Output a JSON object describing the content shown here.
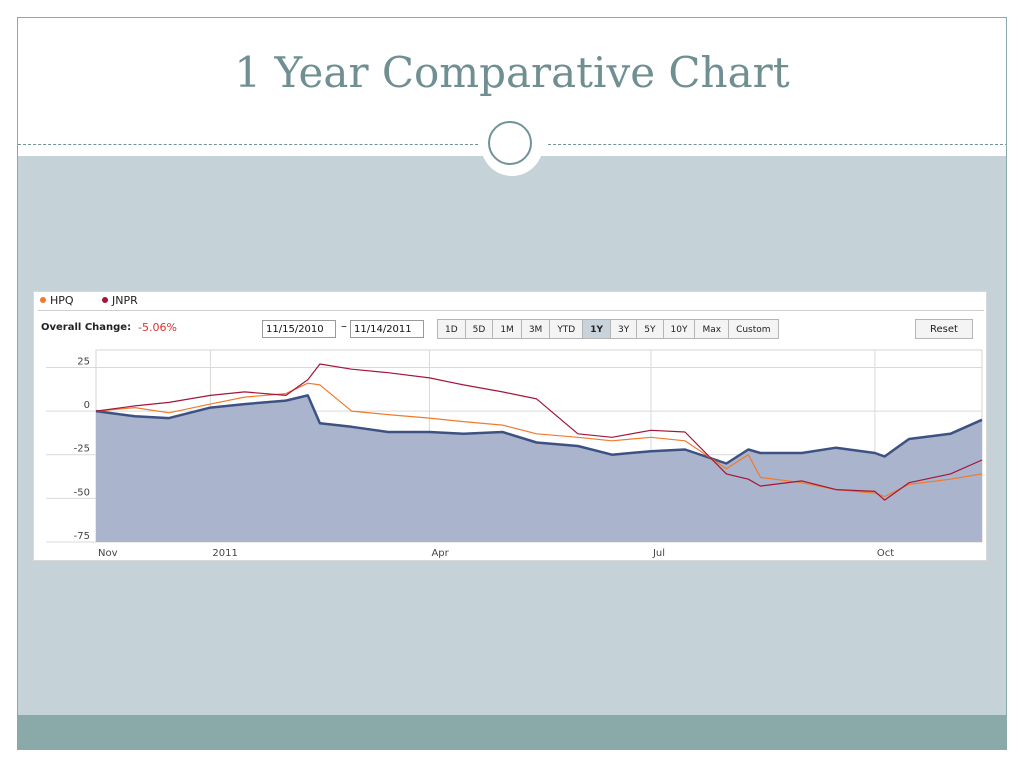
{
  "slide": {
    "title": "1 Year Comparative Chart"
  },
  "widget": {
    "legend": [
      {
        "label": "HPQ",
        "color": "#f07a2d"
      },
      {
        "label": "JNPR",
        "color": "#a3163a"
      }
    ],
    "overall_change_label": "Overall Change:",
    "overall_change_value": "-5.06%",
    "date_from": "11/15/2010",
    "date_sep": "–",
    "date_to": "11/14/2011",
    "range_buttons": [
      "1D",
      "5D",
      "1M",
      "3M",
      "YTD",
      "1Y",
      "3Y",
      "5Y",
      "10Y",
      "Max",
      "Custom"
    ],
    "active_range": "1Y",
    "reset_label": "Reset"
  },
  "chart_data": {
    "type": "line",
    "title": "",
    "ylim": [
      -75,
      35
    ],
    "y_ticks": [
      25,
      0,
      -25,
      -50,
      -75
    ],
    "x_ticks": [
      "Nov",
      "2011",
      "Apr",
      "Jul",
      "Oct"
    ],
    "grid": true,
    "legend": "top-left",
    "x": [
      "2010-11-15",
      "2010-12-01",
      "2010-12-15",
      "2011-01-01",
      "2011-01-15",
      "2011-02-01",
      "2011-02-10",
      "2011-02-15",
      "2011-02-28",
      "2011-03-15",
      "2011-04-01",
      "2011-04-15",
      "2011-05-01",
      "2011-05-15",
      "2011-06-01",
      "2011-06-15",
      "2011-07-01",
      "2011-07-15",
      "2011-08-01",
      "2011-08-10",
      "2011-08-15",
      "2011-09-01",
      "2011-09-15",
      "2011-10-01",
      "2011-10-05",
      "2011-10-15",
      "2011-11-01",
      "2011-11-14"
    ],
    "series": [
      {
        "color": "#3d5283",
        "fill": "#aab4cc",
        "values": [
          0,
          -3,
          -4,
          2,
          4,
          6,
          9,
          -7,
          -9,
          -12,
          -12,
          -13,
          -12,
          -18,
          -20,
          -25,
          -23,
          -22,
          -30,
          -22,
          -24,
          -24,
          -21,
          -24,
          -26,
          -16,
          -13,
          -5
        ]
      },
      {
        "name": "HPQ",
        "color": "#f07a2d",
        "values": [
          0,
          2,
          -1,
          4,
          8,
          10,
          16,
          15,
          0,
          -2,
          -4,
          -6,
          -8,
          -13,
          -15,
          -17,
          -15,
          -17,
          -33,
          -25,
          -38,
          -41,
          -45,
          -47,
          -49,
          -42,
          -39,
          -36
        ]
      },
      {
        "name": "JNPR",
        "color": "#a3163a",
        "values": [
          0,
          3,
          5,
          9,
          11,
          9,
          18,
          27,
          24,
          22,
          19,
          15,
          11,
          7,
          -13,
          -15,
          -11,
          -12,
          -36,
          -39,
          -43,
          -40,
          -45,
          -46,
          -51,
          -41,
          -36,
          -28
        ]
      }
    ]
  }
}
